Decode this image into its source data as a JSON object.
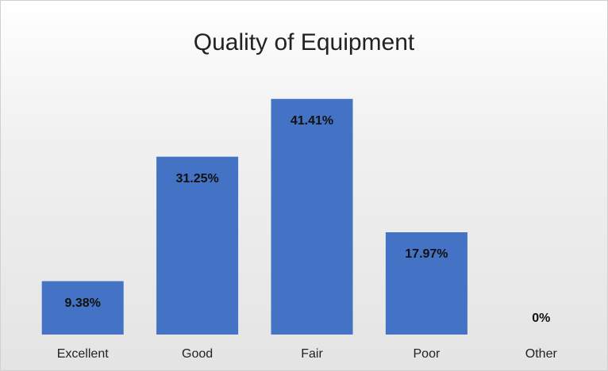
{
  "chart_data": {
    "type": "bar",
    "title": "Quality of Equipment",
    "categories": [
      "Excellent",
      "Good",
      "Fair",
      "Poor",
      "Other"
    ],
    "values": [
      9.38,
      31.25,
      41.41,
      17.97,
      0
    ],
    "value_labels": [
      "9.38%",
      "31.25%",
      "41.41%",
      "17.97%",
      "0%"
    ],
    "color": "#4472c4",
    "ylim": [
      0,
      45
    ]
  }
}
